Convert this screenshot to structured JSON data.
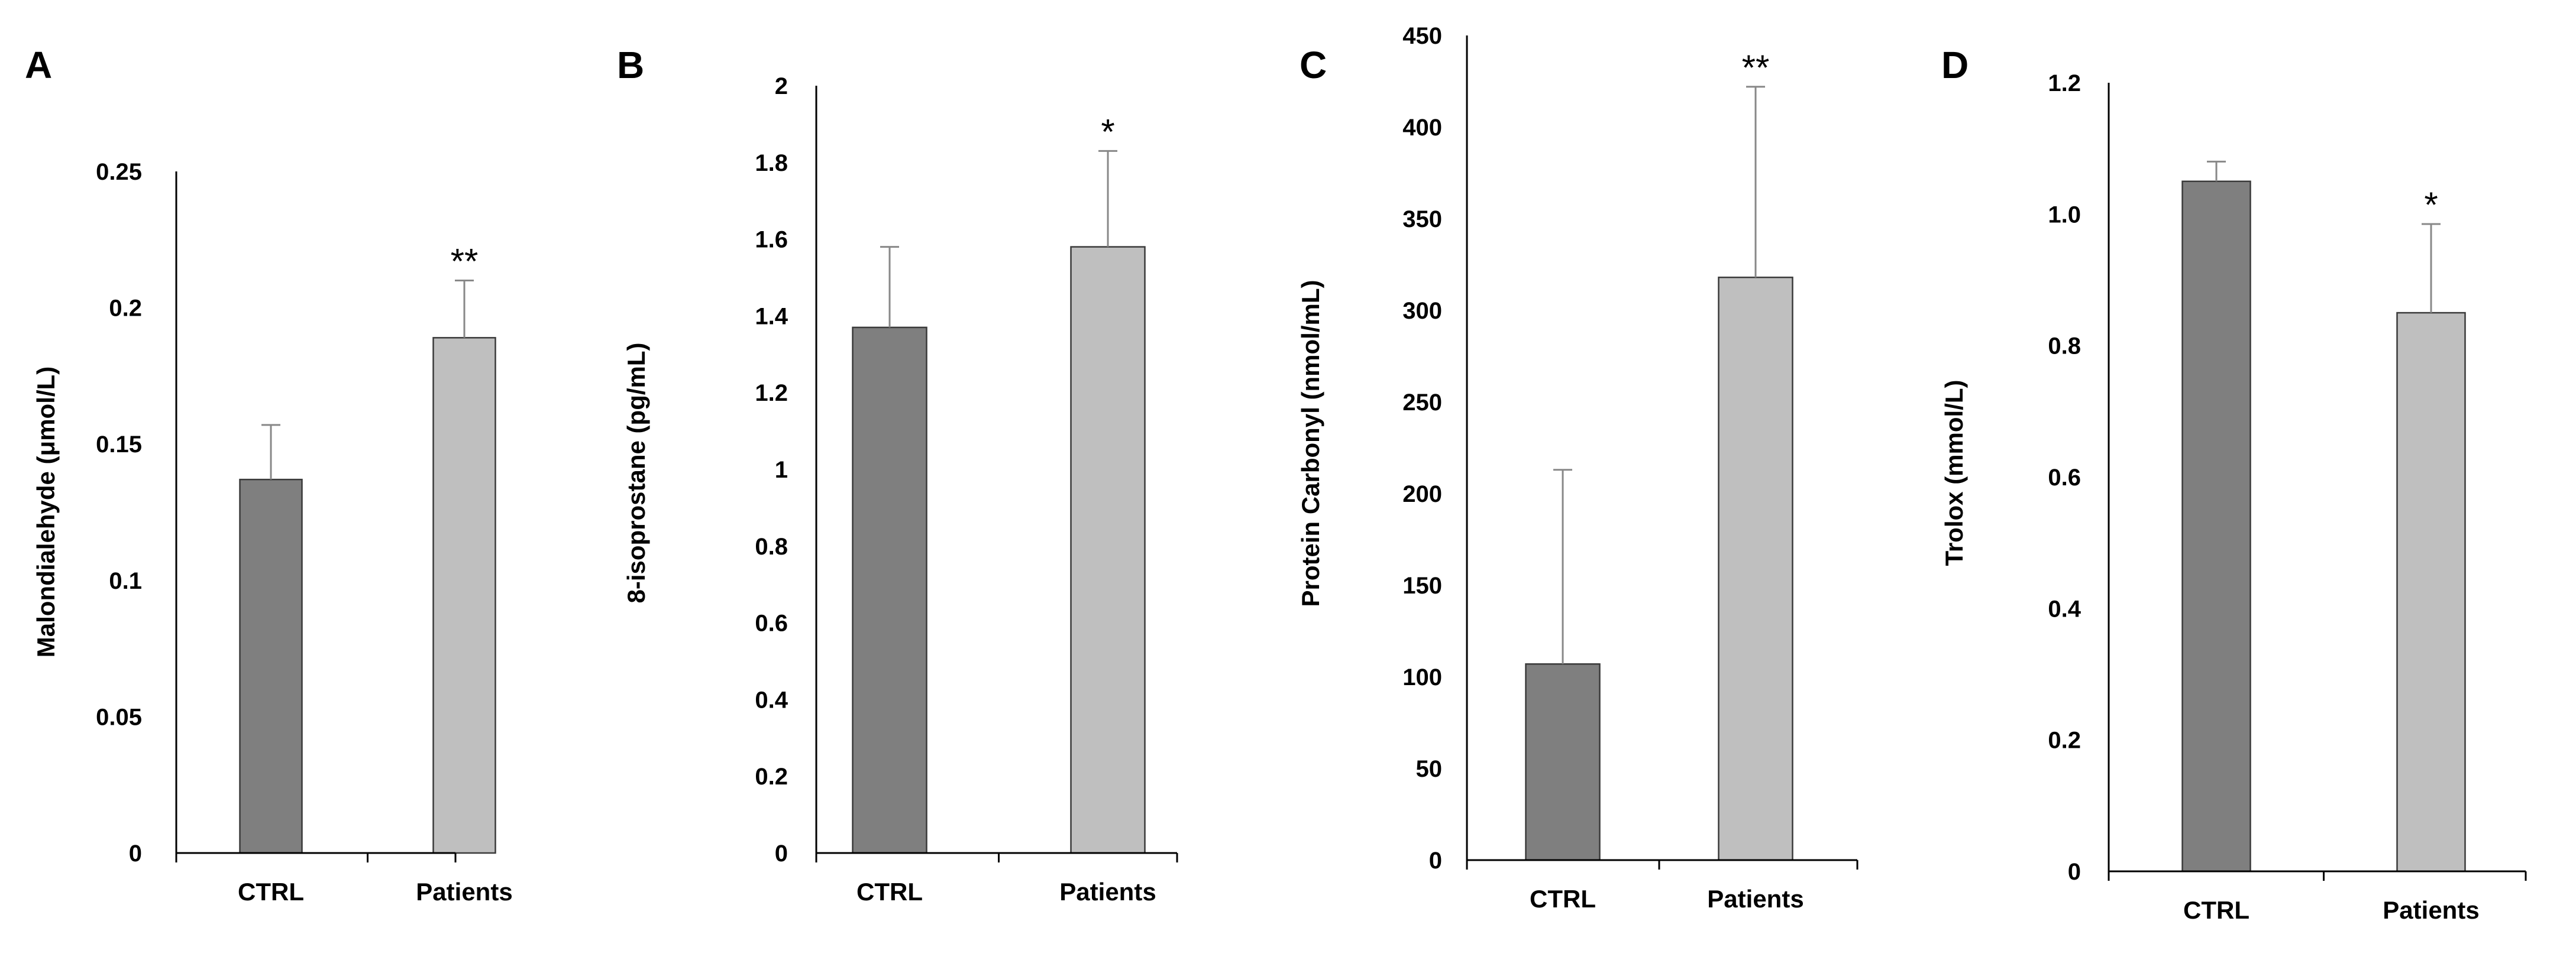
{
  "chart_data": [
    {
      "panel": "A",
      "type": "bar",
      "categories": [
        "CTRL",
        "Patients"
      ],
      "values": [
        0.137,
        0.189
      ],
      "errors": [
        0.02,
        0.021
      ],
      "significance": [
        "",
        "**"
      ],
      "ylabel": "Malondialehyde  (μmol/L)",
      "ylim": [
        0,
        0.25
      ],
      "yticks": [
        "0",
        "0.05",
        "0.1",
        "0.15",
        "0.2",
        "0.25"
      ],
      "colors": [
        "#7f7f7f",
        "#bfbfbf"
      ]
    },
    {
      "panel": "B",
      "type": "bar",
      "categories": [
        "CTRL",
        "Patients"
      ],
      "values": [
        1.37,
        1.58
      ],
      "errors": [
        0.21,
        0.25
      ],
      "significance": [
        "",
        "*"
      ],
      "ylabel": "8-isoprostane  (pg/mL)",
      "ylim": [
        0,
        2
      ],
      "yticks": [
        "0",
        "0.2",
        "0.4",
        "0.6",
        "0.8",
        "1",
        "1.2",
        "1.4",
        "1.6",
        "1.8",
        "2"
      ],
      "colors": [
        "#7f7f7f",
        "#bfbfbf"
      ]
    },
    {
      "panel": "C",
      "type": "bar",
      "categories": [
        "CTRL",
        "Patients"
      ],
      "values": [
        107,
        318
      ],
      "errors": [
        106,
        104
      ],
      "significance": [
        "",
        "**"
      ],
      "ylabel": "Protein Carbonyl  (nmol/mL)",
      "ylim": [
        0,
        450
      ],
      "yticks": [
        "0",
        "50",
        "100",
        "150",
        "200",
        "250",
        "300",
        "350",
        "400",
        "450"
      ],
      "colors": [
        "#7f7f7f",
        "#bfbfbf"
      ]
    },
    {
      "panel": "D",
      "type": "bar",
      "categories": [
        "CTRL",
        "Patients"
      ],
      "values": [
        1.05,
        0.85
      ],
      "errors": [
        0.03,
        0.135
      ],
      "significance": [
        "",
        "*"
      ],
      "ylabel": "Trolox  (mmol/L)",
      "ylim": [
        0,
        1.2
      ],
      "yticks": [
        "0",
        "0.2",
        "0.4",
        "0.6",
        "0.8",
        "1.0",
        "1.2"
      ],
      "colors": [
        "#7f7f7f",
        "#bfbfbf"
      ]
    }
  ]
}
